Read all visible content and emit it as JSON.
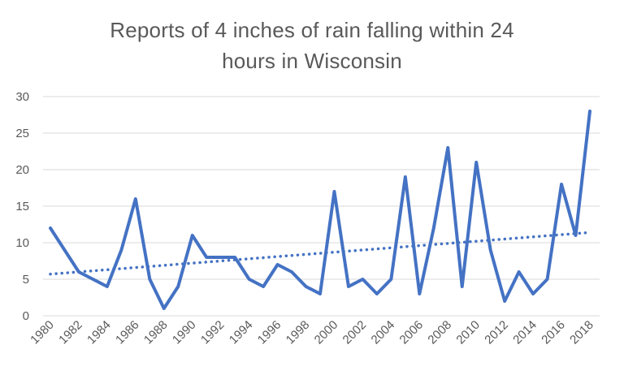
{
  "chart_data": {
    "type": "line",
    "title_lines": [
      "Reports of 4 inches of rain falling within 24",
      "hours in Wisconsin"
    ],
    "xlabel": "",
    "ylabel": "",
    "x": [
      1980,
      1981,
      1982,
      1983,
      1984,
      1985,
      1986,
      1987,
      1988,
      1989,
      1990,
      1991,
      1992,
      1993,
      1994,
      1995,
      1996,
      1997,
      1998,
      1999,
      2000,
      2001,
      2002,
      2003,
      2004,
      2005,
      2006,
      2007,
      2008,
      2009,
      2010,
      2011,
      2012,
      2013,
      2014,
      2015,
      2016,
      2017,
      2018
    ],
    "x_tick_labels": [
      "1980",
      "1982",
      "1984",
      "1986",
      "1988",
      "1990",
      "1992",
      "1994",
      "1996",
      "1998",
      "2000",
      "2002",
      "2004",
      "2006",
      "2008",
      "2010",
      "2012",
      "2014",
      "2016",
      "2018"
    ],
    "series": [
      {
        "values": [
          12,
          9,
          6,
          5,
          4,
          9,
          16,
          5,
          1,
          4,
          11,
          8,
          8,
          8,
          5,
          4,
          7,
          6,
          4,
          3,
          17,
          4,
          5,
          3,
          5,
          19,
          3,
          12,
          23,
          4,
          21,
          9,
          2,
          6,
          3,
          5,
          18,
          11,
          28
        ],
        "color": "#4472C4"
      }
    ],
    "trendline": {
      "type": "linear",
      "start": 5.7,
      "end": 11.4,
      "style": "dotted",
      "color": "#4472C4"
    },
    "y_ticks": [
      0,
      5,
      10,
      15,
      20,
      25,
      30
    ],
    "ylim": [
      0,
      30
    ],
    "grid": "horizontal",
    "legend": "none"
  }
}
